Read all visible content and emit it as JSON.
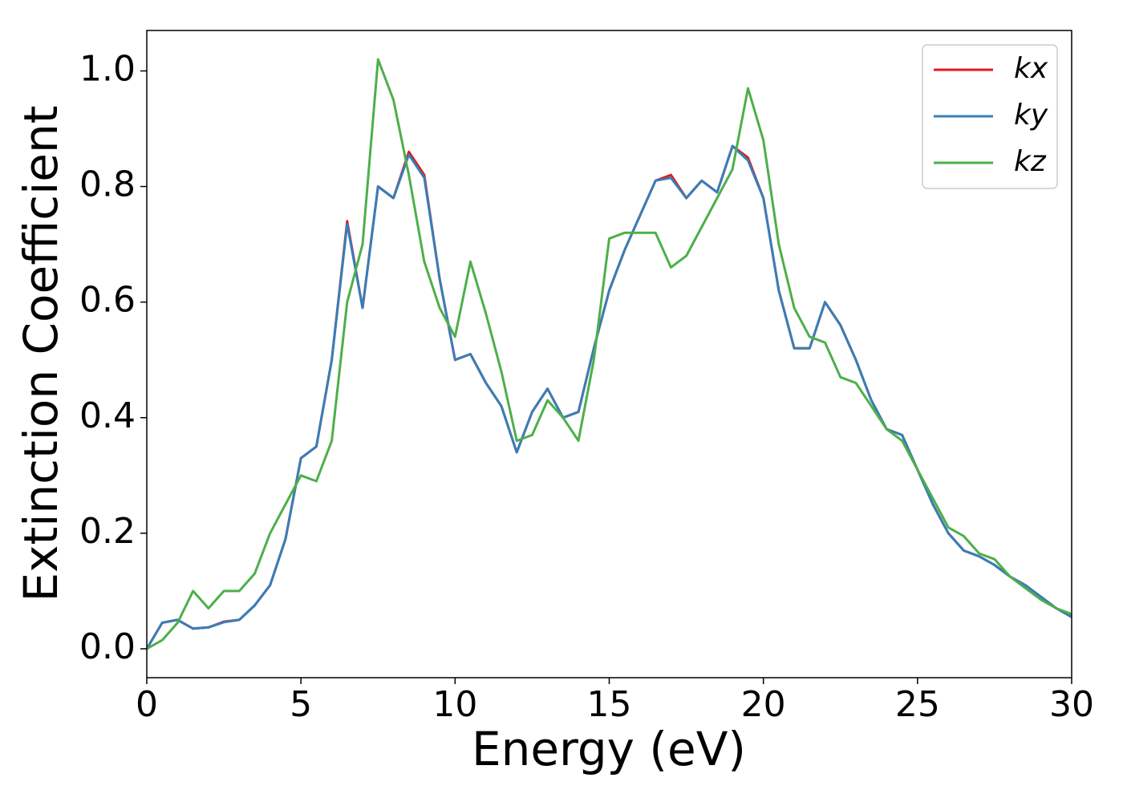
{
  "chart_data": {
    "type": "line",
    "xlabel": "Energy (eV)",
    "ylabel": "Extinction Coefficient",
    "x": [
      0,
      0.5,
      1,
      1.5,
      2,
      2.5,
      3,
      3.5,
      4,
      4.5,
      5,
      5.5,
      6,
      6.5,
      7,
      7.5,
      8,
      8.5,
      9,
      9.5,
      10,
      10.5,
      11,
      11.5,
      12,
      12.5,
      13,
      13.5,
      14,
      14.5,
      15,
      15.5,
      16,
      16.5,
      17,
      17.5,
      18,
      18.5,
      19,
      19.5,
      20,
      20.5,
      21,
      21.5,
      22,
      22.5,
      23,
      23.5,
      24,
      24.5,
      25,
      25.5,
      26,
      26.5,
      27,
      27.5,
      28,
      28.5,
      29,
      29.5,
      30
    ],
    "series": [
      {
        "name": "kx",
        "color": "#e41a1c",
        "values": [
          0,
          0.045,
          0.05,
          0.035,
          0.037,
          0.047,
          0.05,
          0.075,
          0.11,
          0.19,
          0.33,
          0.35,
          0.5,
          0.74,
          0.59,
          0.8,
          0.78,
          0.86,
          0.82,
          0.64,
          0.5,
          0.51,
          0.46,
          0.42,
          0.34,
          0.41,
          0.45,
          0.4,
          0.41,
          0.52,
          0.62,
          0.69,
          0.75,
          0.81,
          0.82,
          0.78,
          0.81,
          0.79,
          0.87,
          0.85,
          0.78,
          0.62,
          0.52,
          0.52,
          0.6,
          0.56,
          0.5,
          0.43,
          0.38,
          0.37,
          0.31,
          0.25,
          0.2,
          0.17,
          0.16,
          0.145,
          0.125,
          0.11,
          0.09,
          0.07,
          0.055
        ]
      },
      {
        "name": "ky",
        "color": "#377eb8",
        "values": [
          0,
          0.045,
          0.05,
          0.035,
          0.037,
          0.046,
          0.05,
          0.075,
          0.11,
          0.19,
          0.33,
          0.35,
          0.5,
          0.735,
          0.59,
          0.8,
          0.78,
          0.855,
          0.815,
          0.64,
          0.5,
          0.51,
          0.46,
          0.42,
          0.34,
          0.41,
          0.45,
          0.4,
          0.41,
          0.52,
          0.62,
          0.69,
          0.75,
          0.81,
          0.815,
          0.78,
          0.81,
          0.79,
          0.87,
          0.845,
          0.78,
          0.62,
          0.52,
          0.52,
          0.6,
          0.56,
          0.5,
          0.43,
          0.38,
          0.37,
          0.31,
          0.25,
          0.2,
          0.17,
          0.16,
          0.145,
          0.125,
          0.11,
          0.09,
          0.07,
          0.055
        ]
      },
      {
        "name": "kz",
        "color": "#4daf4a",
        "values": [
          0,
          0.015,
          0.045,
          0.1,
          0.07,
          0.1,
          0.1,
          0.13,
          0.2,
          0.25,
          0.3,
          0.29,
          0.36,
          0.6,
          0.7,
          1.02,
          0.95,
          0.82,
          0.67,
          0.59,
          0.54,
          0.67,
          0.58,
          0.48,
          0.36,
          0.37,
          0.43,
          0.4,
          0.36,
          0.5,
          0.71,
          0.72,
          0.72,
          0.72,
          0.66,
          0.68,
          0.73,
          0.78,
          0.83,
          0.97,
          0.88,
          0.7,
          0.59,
          0.54,
          0.53,
          0.47,
          0.46,
          0.42,
          0.38,
          0.36,
          0.31,
          0.26,
          0.21,
          0.195,
          0.165,
          0.155,
          0.125,
          0.105,
          0.085,
          0.07,
          0.06
        ]
      }
    ],
    "xlim": [
      0,
      30
    ],
    "xticks": [
      0,
      5,
      10,
      15,
      20,
      25,
      30
    ],
    "ylim": [
      -0.05,
      1.07
    ],
    "yticks": [
      {
        "value": 0,
        "label": "0.0"
      },
      {
        "value": 0.2,
        "label": "0.2"
      },
      {
        "value": 0.4,
        "label": "0.4"
      },
      {
        "value": 0.6,
        "label": "0.6"
      },
      {
        "value": 0.8,
        "label": "0.8"
      },
      {
        "value": 1,
        "label": "1.0"
      }
    ],
    "legend": "upper right",
    "grid": false
  }
}
